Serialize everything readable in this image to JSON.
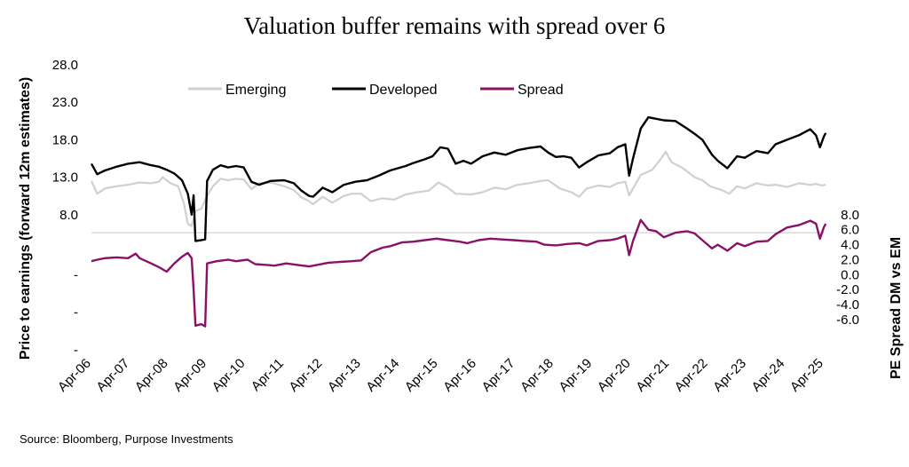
{
  "chart_data": {
    "type": "line",
    "title": "Valuation buffer remains with spread over 6",
    "ylabel": "Price to earnings (forward 12m estimates)",
    "y2label": "PE Spread DM vs EM",
    "source": "Source: Bloomberg, Purpose Investments",
    "x_ticks": [
      "Apr-06",
      "Apr-07",
      "Apr-08",
      "Apr-09",
      "Apr-10",
      "Apr-11",
      "Apr-12",
      "Apr-13",
      "Apr-14",
      "Apr-15",
      "Apr-16",
      "Apr-17",
      "Apr-18",
      "Apr-19",
      "Apr-20",
      "Apr-21",
      "Apr-22",
      "Apr-23",
      "Apr-24",
      "Apr-25"
    ],
    "x_range": [
      2006.25,
      2025.25
    ],
    "y_left": {
      "ticks": [
        "28.0",
        "23.0",
        "18.0",
        "13.0",
        "8.0",
        "-",
        "-",
        "-"
      ],
      "tick_values": [
        28,
        23,
        18,
        13,
        8,
        0,
        -5,
        -10
      ],
      "range": [
        -10.5,
        28
      ]
    },
    "y_right": {
      "ticks": [
        "8.0",
        "6.0",
        "4.0",
        "2.0",
        "0.0",
        "-2.0",
        "-4.0",
        "-6.0"
      ],
      "tick_values": [
        8,
        6,
        4,
        2,
        0,
        -2,
        -4,
        -6
      ]
    },
    "colors": {
      "Emerging": "#d0d0d0",
      "Developed": "#000000",
      "Spread": "#8b1166",
      "title": "#8b1166",
      "divider": "#c8c8c8"
    },
    "series": [
      {
        "name": "Emerging",
        "axis": "left",
        "points": [
          [
            2006.25,
            12.5
          ],
          [
            2006.4,
            10.8
          ],
          [
            2006.6,
            11.5
          ],
          [
            2006.9,
            11.8
          ],
          [
            2007.2,
            12.0
          ],
          [
            2007.5,
            12.3
          ],
          [
            2007.8,
            12.2
          ],
          [
            2008.0,
            12.4
          ],
          [
            2008.1,
            13.0
          ],
          [
            2008.3,
            12.2
          ],
          [
            2008.5,
            11.8
          ],
          [
            2008.65,
            9.5
          ],
          [
            2008.75,
            6.8
          ],
          [
            2008.85,
            6.5
          ],
          [
            2008.95,
            8.5
          ],
          [
            2009.1,
            8.8
          ],
          [
            2009.25,
            10.5
          ],
          [
            2009.4,
            11.8
          ],
          [
            2009.6,
            12.8
          ],
          [
            2009.8,
            12.6
          ],
          [
            2010.0,
            12.8
          ],
          [
            2010.2,
            12.7
          ],
          [
            2010.4,
            11.4
          ],
          [
            2010.6,
            12.2
          ],
          [
            2010.9,
            12.3
          ],
          [
            2011.25,
            11.8
          ],
          [
            2011.5,
            11.3
          ],
          [
            2011.7,
            10.3
          ],
          [
            2011.9,
            9.8
          ],
          [
            2012.0,
            9.4
          ],
          [
            2012.25,
            10.4
          ],
          [
            2012.5,
            9.6
          ],
          [
            2012.8,
            10.5
          ],
          [
            2013.0,
            10.8
          ],
          [
            2013.25,
            10.8
          ],
          [
            2013.5,
            9.8
          ],
          [
            2013.8,
            10.2
          ],
          [
            2014.1,
            10.0
          ],
          [
            2014.4,
            10.7
          ],
          [
            2014.7,
            11.0
          ],
          [
            2015.0,
            11.2
          ],
          [
            2015.25,
            12.3
          ],
          [
            2015.5,
            11.6
          ],
          [
            2015.7,
            10.8
          ],
          [
            2016.1,
            10.7
          ],
          [
            2016.4,
            11.0
          ],
          [
            2016.7,
            11.6
          ],
          [
            2017.0,
            11.4
          ],
          [
            2017.3,
            12.0
          ],
          [
            2017.6,
            12.2
          ],
          [
            2017.9,
            12.5
          ],
          [
            2018.1,
            12.6
          ],
          [
            2018.4,
            11.5
          ],
          [
            2018.7,
            11.0
          ],
          [
            2018.9,
            10.4
          ],
          [
            2019.1,
            11.5
          ],
          [
            2019.4,
            11.9
          ],
          [
            2019.7,
            11.7
          ],
          [
            2019.9,
            12.2
          ],
          [
            2020.1,
            12.4
          ],
          [
            2020.2,
            10.6
          ],
          [
            2020.3,
            11.5
          ],
          [
            2020.5,
            13.3
          ],
          [
            2020.8,
            14.0
          ],
          [
            2021.0,
            15.3
          ],
          [
            2021.15,
            16.4
          ],
          [
            2021.3,
            15.0
          ],
          [
            2021.6,
            14.2
          ],
          [
            2021.9,
            13.0
          ],
          [
            2022.1,
            12.6
          ],
          [
            2022.3,
            11.8
          ],
          [
            2022.6,
            11.3
          ],
          [
            2022.8,
            10.8
          ],
          [
            2023.0,
            11.8
          ],
          [
            2023.2,
            11.5
          ],
          [
            2023.5,
            12.2
          ],
          [
            2023.8,
            11.9
          ],
          [
            2024.0,
            12.0
          ],
          [
            2024.3,
            11.7
          ],
          [
            2024.6,
            12.2
          ],
          [
            2024.9,
            12.0
          ],
          [
            2025.05,
            12.1
          ],
          [
            2025.2,
            11.9
          ],
          [
            2025.3,
            12.0
          ]
        ]
      },
      {
        "name": "Developed",
        "axis": "left",
        "points": [
          [
            2006.25,
            14.8
          ],
          [
            2006.4,
            13.4
          ],
          [
            2006.6,
            13.9
          ],
          [
            2006.9,
            14.4
          ],
          [
            2007.2,
            14.8
          ],
          [
            2007.5,
            15.0
          ],
          [
            2007.8,
            14.6
          ],
          [
            2008.0,
            14.4
          ],
          [
            2008.2,
            14.0
          ],
          [
            2008.4,
            13.5
          ],
          [
            2008.6,
            12.6
          ],
          [
            2008.75,
            10.8
          ],
          [
            2008.85,
            8.0
          ],
          [
            2008.9,
            10.6
          ],
          [
            2008.95,
            4.5
          ],
          [
            2009.1,
            4.6
          ],
          [
            2009.2,
            4.7
          ],
          [
            2009.25,
            12.5
          ],
          [
            2009.4,
            14.0
          ],
          [
            2009.6,
            14.6
          ],
          [
            2009.8,
            14.3
          ],
          [
            2010.0,
            14.5
          ],
          [
            2010.2,
            14.3
          ],
          [
            2010.4,
            12.4
          ],
          [
            2010.6,
            12.0
          ],
          [
            2010.9,
            12.5
          ],
          [
            2011.25,
            12.6
          ],
          [
            2011.5,
            12.2
          ],
          [
            2011.7,
            11.2
          ],
          [
            2011.9,
            10.5
          ],
          [
            2012.0,
            10.4
          ],
          [
            2012.25,
            11.6
          ],
          [
            2012.5,
            11.0
          ],
          [
            2012.8,
            12.0
          ],
          [
            2013.1,
            12.4
          ],
          [
            2013.4,
            12.6
          ],
          [
            2013.7,
            13.2
          ],
          [
            2014.0,
            13.9
          ],
          [
            2014.4,
            14.5
          ],
          [
            2014.6,
            14.9
          ],
          [
            2014.9,
            15.4
          ],
          [
            2015.1,
            15.8
          ],
          [
            2015.3,
            17.0
          ],
          [
            2015.5,
            16.8
          ],
          [
            2015.7,
            14.8
          ],
          [
            2015.9,
            15.2
          ],
          [
            2016.1,
            14.8
          ],
          [
            2016.4,
            15.8
          ],
          [
            2016.7,
            16.3
          ],
          [
            2017.0,
            16.0
          ],
          [
            2017.3,
            16.6
          ],
          [
            2017.6,
            16.9
          ],
          [
            2017.9,
            17.1
          ],
          [
            2018.1,
            16.3
          ],
          [
            2018.3,
            15.7
          ],
          [
            2018.5,
            15.8
          ],
          [
            2018.7,
            15.6
          ],
          [
            2018.9,
            14.3
          ],
          [
            2019.1,
            15.0
          ],
          [
            2019.4,
            15.9
          ],
          [
            2019.7,
            16.2
          ],
          [
            2019.9,
            17.0
          ],
          [
            2020.1,
            17.4
          ],
          [
            2020.2,
            13.2
          ],
          [
            2020.3,
            15.5
          ],
          [
            2020.5,
            19.5
          ],
          [
            2020.7,
            21.0
          ],
          [
            2020.9,
            20.8
          ],
          [
            2021.1,
            20.6
          ],
          [
            2021.4,
            20.5
          ],
          [
            2021.7,
            19.5
          ],
          [
            2021.9,
            18.8
          ],
          [
            2022.1,
            18.0
          ],
          [
            2022.35,
            16.0
          ],
          [
            2022.5,
            15.2
          ],
          [
            2022.75,
            14.2
          ],
          [
            2023.0,
            15.8
          ],
          [
            2023.2,
            15.6
          ],
          [
            2023.5,
            16.5
          ],
          [
            2023.8,
            16.2
          ],
          [
            2024.0,
            17.4
          ],
          [
            2024.3,
            18.0
          ],
          [
            2024.6,
            18.6
          ],
          [
            2024.9,
            19.4
          ],
          [
            2025.05,
            18.6
          ],
          [
            2025.15,
            17.0
          ],
          [
            2025.25,
            18.4
          ],
          [
            2025.3,
            18.9
          ]
        ]
      },
      {
        "name": "Spread",
        "axis": "left",
        "points": [
          [
            2006.25,
            1.8
          ],
          [
            2006.4,
            2.0
          ],
          [
            2006.6,
            2.2
          ],
          [
            2006.9,
            2.3
          ],
          [
            2007.2,
            2.2
          ],
          [
            2007.4,
            2.8
          ],
          [
            2007.5,
            2.2
          ],
          [
            2007.8,
            1.5
          ],
          [
            2008.0,
            1.0
          ],
          [
            2008.2,
            0.4
          ],
          [
            2008.4,
            1.5
          ],
          [
            2008.6,
            2.4
          ],
          [
            2008.75,
            2.9
          ],
          [
            2008.85,
            2.2
          ],
          [
            2008.9,
            -2.0
          ],
          [
            2008.95,
            -6.8
          ],
          [
            2009.1,
            -6.6
          ],
          [
            2009.2,
            -6.9
          ],
          [
            2009.25,
            1.5
          ],
          [
            2009.5,
            1.8
          ],
          [
            2009.8,
            2.0
          ],
          [
            2010.0,
            1.8
          ],
          [
            2010.3,
            2.0
          ],
          [
            2010.5,
            1.4
          ],
          [
            2010.8,
            1.3
          ],
          [
            2011.0,
            1.2
          ],
          [
            2011.3,
            1.5
          ],
          [
            2011.6,
            1.3
          ],
          [
            2011.9,
            1.1
          ],
          [
            2012.1,
            1.3
          ],
          [
            2012.4,
            1.6
          ],
          [
            2012.7,
            1.7
          ],
          [
            2013.0,
            1.8
          ],
          [
            2013.25,
            1.9
          ],
          [
            2013.5,
            3.0
          ],
          [
            2013.8,
            3.6
          ],
          [
            2014.0,
            3.8
          ],
          [
            2014.3,
            4.3
          ],
          [
            2014.6,
            4.4
          ],
          [
            2014.9,
            4.6
          ],
          [
            2015.2,
            4.8
          ],
          [
            2015.5,
            4.6
          ],
          [
            2015.8,
            4.4
          ],
          [
            2016.0,
            4.2
          ],
          [
            2016.3,
            4.6
          ],
          [
            2016.6,
            4.8
          ],
          [
            2016.9,
            4.7
          ],
          [
            2017.2,
            4.6
          ],
          [
            2017.5,
            4.5
          ],
          [
            2017.8,
            4.4
          ],
          [
            2018.0,
            4.0
          ],
          [
            2018.3,
            3.9
          ],
          [
            2018.6,
            4.1
          ],
          [
            2018.9,
            4.2
          ],
          [
            2019.1,
            3.9
          ],
          [
            2019.4,
            4.5
          ],
          [
            2019.7,
            4.6
          ],
          [
            2019.9,
            4.8
          ],
          [
            2020.1,
            5.2
          ],
          [
            2020.2,
            2.6
          ],
          [
            2020.3,
            4.5
          ],
          [
            2020.5,
            7.3
          ],
          [
            2020.7,
            6.0
          ],
          [
            2020.9,
            5.8
          ],
          [
            2021.1,
            5.0
          ],
          [
            2021.4,
            5.6
          ],
          [
            2021.7,
            5.8
          ],
          [
            2021.9,
            5.5
          ],
          [
            2022.1,
            4.6
          ],
          [
            2022.35,
            3.5
          ],
          [
            2022.5,
            4.0
          ],
          [
            2022.75,
            3.2
          ],
          [
            2023.0,
            4.2
          ],
          [
            2023.2,
            3.8
          ],
          [
            2023.5,
            4.4
          ],
          [
            2023.8,
            4.5
          ],
          [
            2024.0,
            5.4
          ],
          [
            2024.3,
            6.3
          ],
          [
            2024.6,
            6.6
          ],
          [
            2024.9,
            7.2
          ],
          [
            2025.05,
            6.8
          ],
          [
            2025.15,
            4.8
          ],
          [
            2025.25,
            6.3
          ],
          [
            2025.3,
            6.8
          ]
        ]
      }
    ]
  }
}
